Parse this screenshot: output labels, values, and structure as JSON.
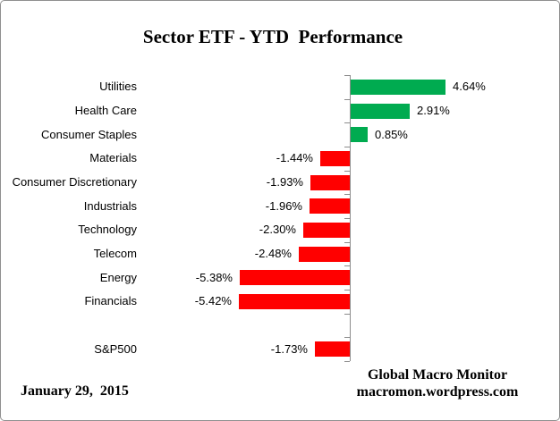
{
  "title": "Sector ETF - YTD  Performance",
  "footer": {
    "date": "January 29,  2015",
    "credit_line1": "Global Macro Monitor",
    "credit_line2": "macromon.wordpress.com"
  },
  "colors": {
    "positive_bar": "#00AB50",
    "negative_bar": "#FF0000",
    "axis": "#8C8C8C",
    "frame_border": "#8F8F8F",
    "text": "#000000"
  },
  "chart_data": {
    "type": "bar",
    "orientation": "horizontal",
    "title": "Sector ETF - YTD  Performance",
    "xlabel": "",
    "ylabel": "",
    "grid": false,
    "legend": false,
    "value_axis_labels_visible": false,
    "xlim": [
      -6,
      6
    ],
    "categories": [
      "Utilities",
      "Health Care",
      "Consumer Staples",
      "Materials",
      "Consumer Discretionary",
      "Industrials",
      "Technology",
      "Telecom",
      "Energy",
      "Financials",
      null,
      "S&P500"
    ],
    "values": [
      4.64,
      2.91,
      0.85,
      -1.44,
      -1.93,
      -1.96,
      -2.3,
      -2.48,
      -5.38,
      -5.42,
      null,
      -1.73
    ],
    "labels": [
      "4.64%",
      "2.91%",
      "0.85%",
      "-1.44%",
      "-1.93%",
      "-1.96%",
      "-2.30%",
      "-2.48%",
      "-5.38%",
      "-5.42%",
      null,
      "-1.73%"
    ]
  }
}
